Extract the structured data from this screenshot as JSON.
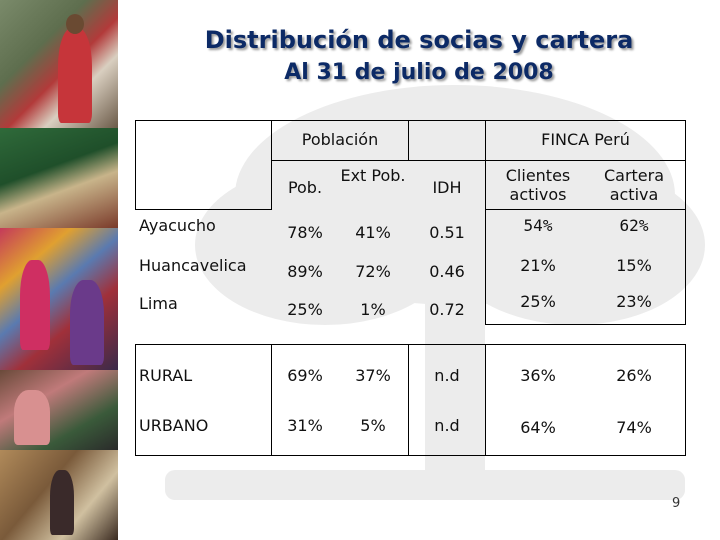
{
  "slide": {
    "title": "Distribución de socias y cartera",
    "subtitle": "Al 31 de julio de 2008",
    "page_number": "9"
  },
  "table": {
    "group_headers": {
      "poblacion": "Población",
      "finca": "FINCA Perú"
    },
    "column_headers": {
      "pob": "Pob.",
      "ext_pob": "Ext Pob.",
      "idh": "IDH",
      "clientes": "Clientes activos",
      "cartera": "Cartera activa"
    },
    "rows": [
      {
        "label": "Ayacucho",
        "pob": "78%",
        "ext_pob": "41%",
        "idh": "0.51",
        "clientes": "54%",
        "cartera": "62%"
      },
      {
        "label": "Huancavelica",
        "pob": "89%",
        "ext_pob": "72%",
        "idh": "0.46",
        "clientes": "21%",
        "cartera": "15%"
      },
      {
        "label": "Lima",
        "pob": "25%",
        "ext_pob": "1%",
        "idh": "0.72",
        "clientes": "25%",
        "cartera": "23%"
      },
      {
        "label": "RURAL",
        "pob": "69%",
        "ext_pob": "37%",
        "idh": "n.d",
        "clientes": "36%",
        "cartera": "26%"
      },
      {
        "label": "URBANO",
        "pob": "31%",
        "ext_pob": "5%",
        "idh": "n.d",
        "clientes": "64%",
        "cartera": "74%"
      }
    ]
  },
  "colors": {
    "title": "#0c2a66"
  }
}
